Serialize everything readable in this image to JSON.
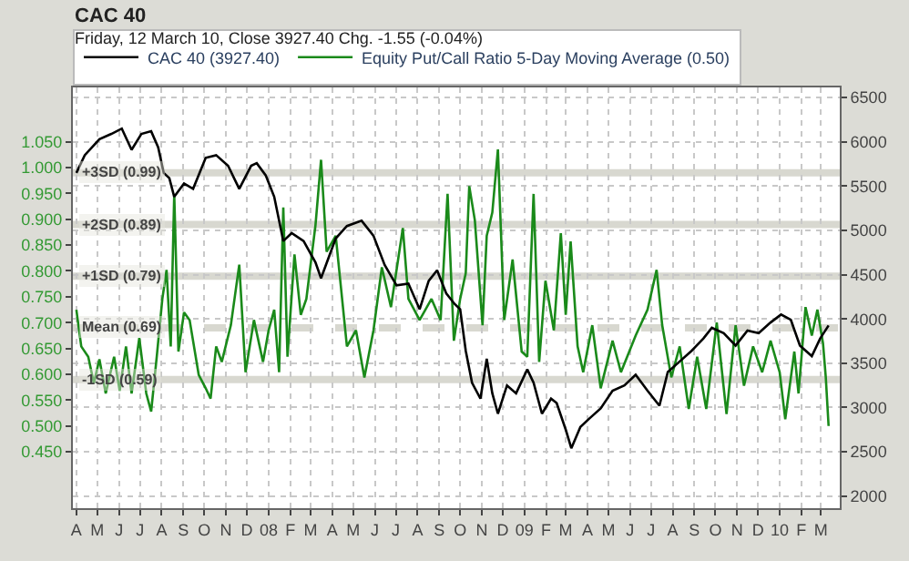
{
  "chart_data": {
    "type": "line",
    "title": "CAC 40",
    "subtitle": "Friday, 12 March 10, Close 3927.40 Chg. -1.55 (-0.04%)",
    "series": [
      {
        "name": "CAC 40 (3927.40)",
        "color": "#000000",
        "axis": "y2",
        "x": [
          "2007-04-01",
          "2007-04-13",
          "2007-05-04",
          "2007-05-21",
          "2007-06-05",
          "2007-06-19",
          "2007-07-03",
          "2007-07-17",
          "2007-07-27",
          "2007-08-04",
          "2007-08-12",
          "2007-08-19",
          "2007-09-02",
          "2007-09-15",
          "2007-10-03",
          "2007-10-18",
          "2007-11-04",
          "2007-11-20",
          "2007-12-07",
          "2007-12-15",
          "2007-12-28",
          "2008-01-09",
          "2008-01-22",
          "2008-02-03",
          "2008-02-20",
          "2008-03-08",
          "2008-03-16",
          "2008-04-06",
          "2008-04-22",
          "2008-05-13",
          "2008-05-30",
          "2008-06-15",
          "2008-07-02",
          "2008-07-19",
          "2008-08-04",
          "2008-08-17",
          "2008-08-29",
          "2008-09-11",
          "2008-09-23",
          "2008-10-01",
          "2008-10-09",
          "2008-10-18",
          "2008-10-30",
          "2008-11-08",
          "2008-11-16",
          "2008-11-24",
          "2008-12-07",
          "2008-12-20",
          "2009-01-05",
          "2009-01-14",
          "2009-01-26",
          "2009-02-08",
          "2009-02-16",
          "2009-03-01",
          "2009-03-09",
          "2009-03-22",
          "2009-04-03",
          "2009-04-20",
          "2009-05-07",
          "2009-05-24",
          "2009-06-09",
          "2009-06-26",
          "2009-07-13",
          "2009-07-25",
          "2009-08-11",
          "2009-08-28",
          "2009-09-14",
          "2009-09-26",
          "2009-10-13",
          "2009-10-30",
          "2009-11-16",
          "2009-12-02",
          "2009-12-19",
          "2010-01-03",
          "2010-01-17",
          "2010-01-30",
          "2010-02-16",
          "2010-02-28",
          "2010-03-12"
        ],
        "values": [
          5650,
          5850,
          6030,
          6090,
          6150,
          5910,
          6090,
          6120,
          5940,
          5650,
          5590,
          5380,
          5530,
          5470,
          5820,
          5850,
          5730,
          5470,
          5730,
          5760,
          5620,
          5380,
          4880,
          4970,
          4880,
          4640,
          4460,
          4910,
          5050,
          5110,
          4940,
          4610,
          4380,
          4400,
          4110,
          4430,
          4550,
          4290,
          4170,
          4110,
          3640,
          3280,
          3100,
          3550,
          3160,
          2930,
          3250,
          3160,
          3430,
          3280,
          2930,
          3100,
          3050,
          2750,
          2540,
          2780,
          2870,
          2990,
          3190,
          3250,
          3370,
          3190,
          3020,
          3400,
          3520,
          3640,
          3780,
          3900,
          3840,
          3700,
          3870,
          3840,
          3960,
          4050,
          3990,
          3700,
          3580,
          3780,
          3927
        ]
      },
      {
        "name": "Equity Put/Call Ratio 5-Day Moving Average (0.50)",
        "color": "#1a8a1a",
        "axis": "y",
        "x": [
          "2007-04-01",
          "2007-04-08",
          "2007-04-18",
          "2007-04-26",
          "2007-05-04",
          "2007-05-13",
          "2007-05-25",
          "2007-06-02",
          "2007-06-11",
          "2007-06-19",
          "2007-06-30",
          "2007-07-10",
          "2007-07-17",
          "2007-07-25",
          "2007-08-02",
          "2007-08-08",
          "2007-08-14",
          "2007-08-19",
          "2007-08-25",
          "2007-09-02",
          "2007-09-10",
          "2007-09-23",
          "2007-10-03",
          "2007-10-10",
          "2007-10-18",
          "2007-10-26",
          "2007-11-08",
          "2007-11-20",
          "2007-11-29",
          "2007-12-11",
          "2007-12-24",
          "2008-01-01",
          "2008-01-09",
          "2008-01-16",
          "2008-01-22",
          "2008-01-28",
          "2008-02-07",
          "2008-02-16",
          "2008-02-24",
          "2008-03-08",
          "2008-03-16",
          "2008-03-24",
          "2008-04-06",
          "2008-04-22",
          "2008-05-05",
          "2008-05-17",
          "2008-05-30",
          "2008-06-11",
          "2008-06-24",
          "2008-07-11",
          "2008-07-19",
          "2008-08-04",
          "2008-08-21",
          "2008-09-03",
          "2008-09-13",
          "2008-09-22",
          "2008-10-01",
          "2008-10-09",
          "2008-10-14",
          "2008-10-22",
          "2008-11-02",
          "2008-11-08",
          "2008-11-16",
          "2008-11-24",
          "2008-12-03",
          "2008-12-15",
          "2008-12-28",
          "2009-01-05",
          "2009-01-14",
          "2009-01-22",
          "2009-01-31",
          "2009-02-12",
          "2009-02-22",
          "2009-03-01",
          "2009-03-08",
          "2009-03-18",
          "2009-03-26",
          "2009-04-08",
          "2009-04-20",
          "2009-05-07",
          "2009-05-19",
          "2009-06-09",
          "2009-06-26",
          "2009-07-09",
          "2009-07-17",
          "2009-07-30",
          "2009-08-11",
          "2009-08-24",
          "2009-09-05",
          "2009-09-18",
          "2009-10-03",
          "2009-10-17",
          "2009-10-30",
          "2009-11-11",
          "2009-11-24",
          "2009-12-07",
          "2009-12-19",
          "2010-01-01",
          "2010-01-09",
          "2010-01-22",
          "2010-01-28",
          "2010-02-07",
          "2010-02-16",
          "2010-02-24",
          "2010-03-04",
          "2010-03-08",
          "2010-03-12"
        ],
        "values": [
          0.725,
          0.654,
          0.634,
          0.583,
          0.629,
          0.563,
          0.634,
          0.568,
          0.654,
          0.563,
          0.67,
          0.563,
          0.528,
          0.634,
          0.746,
          0.802,
          0.654,
          0.949,
          0.644,
          0.72,
          0.705,
          0.599,
          0.573,
          0.553,
          0.654,
          0.624,
          0.695,
          0.812,
          0.604,
          0.705,
          0.624,
          0.685,
          0.725,
          0.604,
          0.923,
          0.634,
          0.832,
          0.715,
          0.746,
          0.888,
          1.015,
          0.837,
          0.868,
          0.654,
          0.685,
          0.594,
          0.685,
          0.807,
          0.73,
          0.883,
          0.746,
          0.705,
          0.746,
          0.705,
          0.949,
          0.665,
          0.746,
          0.796,
          0.964,
          0.898,
          0.695,
          0.868,
          0.913,
          1.035,
          0.705,
          0.822,
          0.644,
          0.634,
          0.949,
          0.624,
          0.781,
          0.685,
          0.873,
          0.715,
          0.857,
          0.654,
          0.604,
          0.695,
          0.573,
          0.665,
          0.604,
          0.675,
          0.725,
          0.802,
          0.695,
          0.594,
          0.654,
          0.533,
          0.634,
          0.533,
          0.7,
          0.523,
          0.695,
          0.578,
          0.654,
          0.604,
          0.665,
          0.604,
          0.513,
          0.644,
          0.563,
          0.73,
          0.675,
          0.725,
          0.66,
          0.594,
          0.5
        ]
      }
    ],
    "xlim": [
      "2007-03-27",
      "2010-03-28"
    ],
    "xticks": [
      {
        "value": "2007-04-01",
        "label": "A"
      },
      {
        "value": "2007-05-01",
        "label": "M"
      },
      {
        "value": "2007-06-01",
        "label": "J"
      },
      {
        "value": "2007-07-01",
        "label": "J"
      },
      {
        "value": "2007-08-01",
        "label": "A"
      },
      {
        "value": "2007-09-01",
        "label": "S"
      },
      {
        "value": "2007-10-01",
        "label": "O"
      },
      {
        "value": "2007-11-01",
        "label": "N"
      },
      {
        "value": "2007-12-01",
        "label": "D"
      },
      {
        "value": "2008-01-01",
        "label": "08"
      },
      {
        "value": "2008-02-01",
        "label": "F"
      },
      {
        "value": "2008-03-01",
        "label": "M"
      },
      {
        "value": "2008-04-01",
        "label": "A"
      },
      {
        "value": "2008-05-01",
        "label": "M"
      },
      {
        "value": "2008-06-01",
        "label": "J"
      },
      {
        "value": "2008-07-01",
        "label": "J"
      },
      {
        "value": "2008-08-01",
        "label": "A"
      },
      {
        "value": "2008-09-01",
        "label": "S"
      },
      {
        "value": "2008-10-01",
        "label": "O"
      },
      {
        "value": "2008-11-01",
        "label": "N"
      },
      {
        "value": "2008-12-01",
        "label": "D"
      },
      {
        "value": "2009-01-01",
        "label": "09"
      },
      {
        "value": "2009-02-01",
        "label": "F"
      },
      {
        "value": "2009-03-01",
        "label": "M"
      },
      {
        "value": "2009-04-01",
        "label": "A"
      },
      {
        "value": "2009-05-01",
        "label": "M"
      },
      {
        "value": "2009-06-01",
        "label": "J"
      },
      {
        "value": "2009-07-01",
        "label": "J"
      },
      {
        "value": "2009-08-01",
        "label": "A"
      },
      {
        "value": "2009-09-01",
        "label": "S"
      },
      {
        "value": "2009-10-01",
        "label": "O"
      },
      {
        "value": "2009-11-01",
        "label": "N"
      },
      {
        "value": "2009-12-01",
        "label": "D"
      },
      {
        "value": "2010-01-01",
        "label": "10"
      },
      {
        "value": "2010-02-01",
        "label": "F"
      },
      {
        "value": "2010-03-01",
        "label": "M"
      }
    ],
    "ylim": [
      0.341,
      1.155
    ],
    "yticks": [
      {
        "value": 0.45,
        "label": "0.450"
      },
      {
        "value": 0.5,
        "label": "0.500"
      },
      {
        "value": 0.55,
        "label": "0.550"
      },
      {
        "value": 0.6,
        "label": "0.600"
      },
      {
        "value": 0.65,
        "label": "0.650"
      },
      {
        "value": 0.7,
        "label": "0.700"
      },
      {
        "value": 0.75,
        "label": "0.750"
      },
      {
        "value": 0.8,
        "label": "0.800"
      },
      {
        "value": 0.85,
        "label": "0.850"
      },
      {
        "value": 0.9,
        "label": "0.900"
      },
      {
        "value": 0.95,
        "label": "0.950"
      },
      {
        "value": 1.0,
        "label": "1.000"
      },
      {
        "value": 1.05,
        "label": "1.050"
      }
    ],
    "y2lim": [
      1863,
      6615
    ],
    "y2ticks": [
      2000,
      2500,
      3000,
      3500,
      4000,
      4500,
      5000,
      5500,
      6000,
      6500
    ],
    "ref_lines": [
      {
        "axis": "y",
        "value": 0.99,
        "label": "+3SD (0.99)",
        "color": "#d8d8d0",
        "line_style": "solid"
      },
      {
        "axis": "y",
        "value": 0.89,
        "label": "+2SD (0.89)",
        "color": "#d8d8d0",
        "line_style": "solid"
      },
      {
        "axis": "y",
        "value": 0.79,
        "label": "+1SD (0.79)",
        "color": "#d8d8d0",
        "line_style": "solid"
      },
      {
        "axis": "y",
        "value": 0.69,
        "label": "Mean (0.69)",
        "color": "#d8d8d0",
        "line_style": "dashed"
      },
      {
        "axis": "y",
        "value": 0.59,
        "label": "-1SD (0.59)",
        "color": "#d8d8d0",
        "line_style": "solid"
      }
    ],
    "grid": true,
    "legend": "top left",
    "marker": "none",
    "line_style": "solid"
  }
}
